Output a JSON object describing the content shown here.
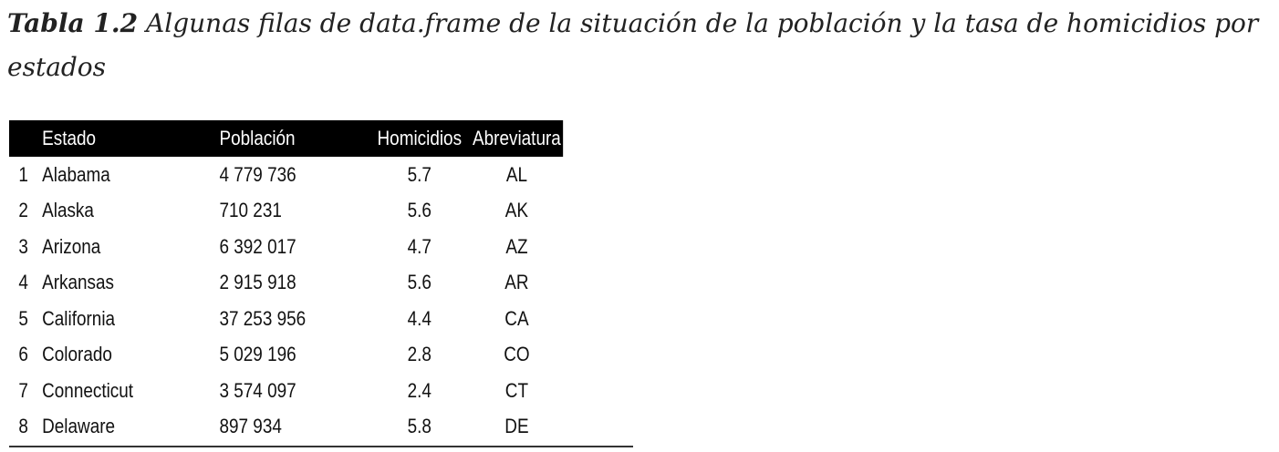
{
  "caption": {
    "label": "Tabla 1.2",
    "text": "Algunas filas de data.frame de la situación de la población y la tasa de homicidios por estados"
  },
  "table": {
    "headers": [
      "",
      "Estado",
      "Población",
      "Homicidios",
      "Abreviatura"
    ],
    "rows": [
      [
        "1",
        "Alabama",
        "4 779 736",
        "5.7",
        "AL"
      ],
      [
        "2",
        "Alaska",
        "710 231",
        "5.6",
        "AK"
      ],
      [
        "3",
        "Arizona",
        "6 392 017",
        "4.7",
        "AZ"
      ],
      [
        "4",
        "Arkansas",
        "2 915 918",
        "5.6",
        "AR"
      ],
      [
        "5",
        "California",
        "37 253 956",
        "4.4",
        "CA"
      ],
      [
        "6",
        "Colorado",
        "5 029 196",
        "2.8",
        "CO"
      ],
      [
        "7",
        "Connecticut",
        "3 574 097",
        "2.4",
        "CT"
      ],
      [
        "8",
        "Delaware",
        "897 934",
        "5.8",
        "DE"
      ]
    ]
  }
}
